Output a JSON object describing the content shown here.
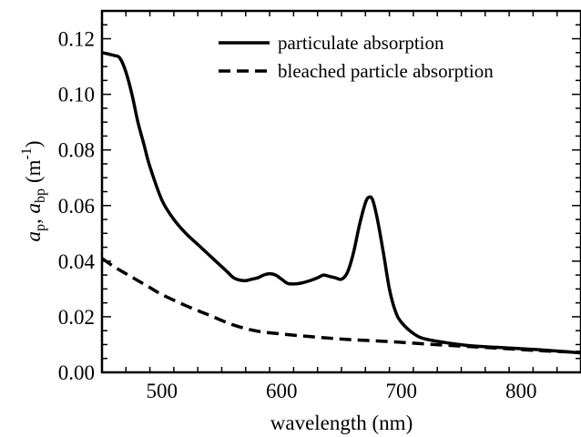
{
  "chart_data": {
    "type": "line",
    "xlabel": "wavelength (nm)",
    "ylabel": {
      "prefix_a": "a",
      "sub_p": "p",
      "comma": ", ",
      "sub_bp": "bp",
      "unit_open": "(m",
      "unit_exp": "-1",
      "unit_close": ")"
    },
    "xlim": [
      450,
      850
    ],
    "ylim": [
      0,
      0.13
    ],
    "x_ticks": [
      500,
      600,
      700,
      800
    ],
    "y_ticks": [
      0.0,
      0.02,
      0.04,
      0.06,
      0.08,
      0.1,
      0.12
    ],
    "x_tick_labels": [
      "500",
      "600",
      "700",
      "800"
    ],
    "y_tick_labels": [
      "0.00",
      "0.02",
      "0.04",
      "0.06",
      "0.08",
      "0.10",
      "0.12"
    ],
    "grid": false,
    "legend_position": "top-right",
    "series": [
      {
        "name": "particulate absorption",
        "style": "solid",
        "color": "#000000",
        "x": [
          450,
          460,
          465,
          470,
          475,
          480,
          485,
          490,
          500,
          510,
          520,
          530,
          540,
          550,
          555,
          560,
          565,
          570,
          575,
          580,
          585,
          590,
          595,
          600,
          605,
          610,
          615,
          620,
          625,
          630,
          635,
          640,
          645,
          650,
          655,
          660,
          665,
          670,
          673,
          676,
          680,
          685,
          690,
          695,
          700,
          710,
          720,
          740,
          760,
          780,
          800,
          820,
          850
        ],
        "y": [
          0.115,
          0.114,
          0.113,
          0.108,
          0.1,
          0.09,
          0.082,
          0.074,
          0.062,
          0.055,
          0.05,
          0.046,
          0.042,
          0.038,
          0.036,
          0.034,
          0.0332,
          0.033,
          0.0335,
          0.034,
          0.035,
          0.0355,
          0.035,
          0.0335,
          0.032,
          0.0318,
          0.032,
          0.0325,
          0.0332,
          0.034,
          0.035,
          0.0345,
          0.034,
          0.0335,
          0.036,
          0.043,
          0.053,
          0.061,
          0.063,
          0.062,
          0.055,
          0.043,
          0.03,
          0.022,
          0.018,
          0.014,
          0.012,
          0.0105,
          0.0095,
          0.009,
          0.0085,
          0.008,
          0.007
        ]
      },
      {
        "name": "bleached particle absorption",
        "style": "dashed",
        "color": "#000000",
        "x": [
          450,
          460,
          470,
          480,
          490,
          500,
          520,
          540,
          560,
          580,
          600,
          620,
          640,
          660,
          680,
          700,
          720,
          740,
          760,
          780,
          800,
          820,
          850
        ],
        "y": [
          0.041,
          0.038,
          0.0355,
          0.033,
          0.0305,
          0.028,
          0.024,
          0.0205,
          0.017,
          0.0148,
          0.0138,
          0.013,
          0.0123,
          0.0117,
          0.0113,
          0.0108,
          0.0102,
          0.0097,
          0.0092,
          0.0087,
          0.0082,
          0.0077,
          0.0072
        ]
      }
    ]
  }
}
